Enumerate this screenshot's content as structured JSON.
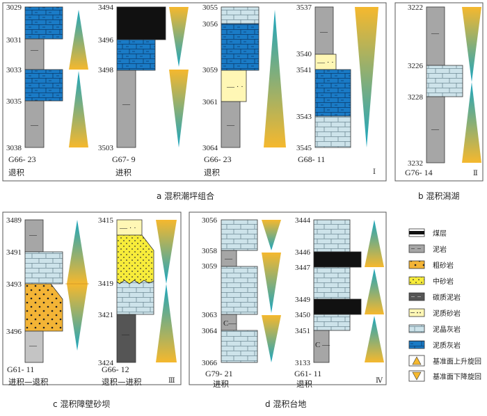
{
  "colors": {
    "coal": "#111111",
    "mudstone": "#a6a6a6",
    "coarse_sandstone": "#f3b436",
    "medium_sandstone": "#f7ec3a",
    "carbonaceous_mudstone": "#555555",
    "muddy_sandstone": "#fff7b5",
    "mud_crystal_limestone": "#cde3ea",
    "muddy_limestone": "#1a7bc6",
    "triangle_yellow": "#f5b82e",
    "triangle_teal": "#1aa5c0"
  },
  "panels": {
    "a": {
      "caption": "a  混积潮坪组合",
      "roman": "Ⅰ"
    },
    "b": {
      "caption": "b  混积潟湖",
      "roman": "Ⅱ"
    },
    "c": {
      "caption": "c  混积障壁砂坝",
      "roman": "Ⅲ"
    },
    "d": {
      "caption": "d  混积台地",
      "roman": "Ⅳ"
    }
  },
  "wells": [
    {
      "id": "w1",
      "name": "G66- 23",
      "trend": "退积",
      "depths": [
        "3029",
        "3031",
        "3033",
        "3035",
        "3038"
      ]
    },
    {
      "id": "w2",
      "name": "G67- 9",
      "trend": "进积",
      "depths": [
        "3494",
        "3496",
        "3498",
        "3503"
      ]
    },
    {
      "id": "w3",
      "name": "G66- 23",
      "trend": "退积",
      "depths": [
        "3055",
        "3056",
        "3059",
        "3061",
        "3064"
      ]
    },
    {
      "id": "w4",
      "name": "G68- 11",
      "trend": "",
      "depths": [
        "3537",
        "3540",
        "3541",
        "3543",
        "3545"
      ]
    },
    {
      "id": "w5",
      "name": "G76- 14",
      "trend": "",
      "depths": [
        "3222",
        "3226",
        "3228",
        "3232"
      ]
    },
    {
      "id": "w6",
      "name": "G61- 11",
      "trend": "进积—退积",
      "depths": [
        "3489",
        "3491",
        "3493",
        "3496"
      ]
    },
    {
      "id": "w7",
      "name": "G66- 12",
      "trend": "退积—进积",
      "depths": [
        "3415",
        "3419",
        "3421",
        "3424"
      ]
    },
    {
      "id": "w8",
      "name": "G79- 21",
      "trend": "进积",
      "depths": [
        "3056",
        "3058",
        "3059",
        "3063",
        "3064",
        "3066"
      ]
    },
    {
      "id": "w9",
      "name": "G61- 11",
      "trend": "退积",
      "depths": [
        "3444",
        "3446",
        "3447",
        "3449",
        "3450",
        "3451",
        "3133"
      ]
    }
  ],
  "symbols": {
    "mud_dash": "—",
    "carbon_c": "C"
  },
  "legend": [
    {
      "key": "coal",
      "label": "煤层"
    },
    {
      "key": "mudstone",
      "label": "泥岩"
    },
    {
      "key": "coarse_sandstone",
      "label": "粗砂岩"
    },
    {
      "key": "medium_sandstone",
      "label": "中砂岩"
    },
    {
      "key": "carbonaceous_mudstone",
      "label": "碳质泥岩"
    },
    {
      "key": "muddy_sandstone",
      "label": "泥质砂岩"
    },
    {
      "key": "mud_crystal_limestone",
      "label": "泥晶灰岩"
    },
    {
      "key": "muddy_limestone",
      "label": "泥质灰岩"
    },
    {
      "key": "rising",
      "label": "基准面上升旋回"
    },
    {
      "key": "falling",
      "label": "基准面下降旋回"
    }
  ]
}
